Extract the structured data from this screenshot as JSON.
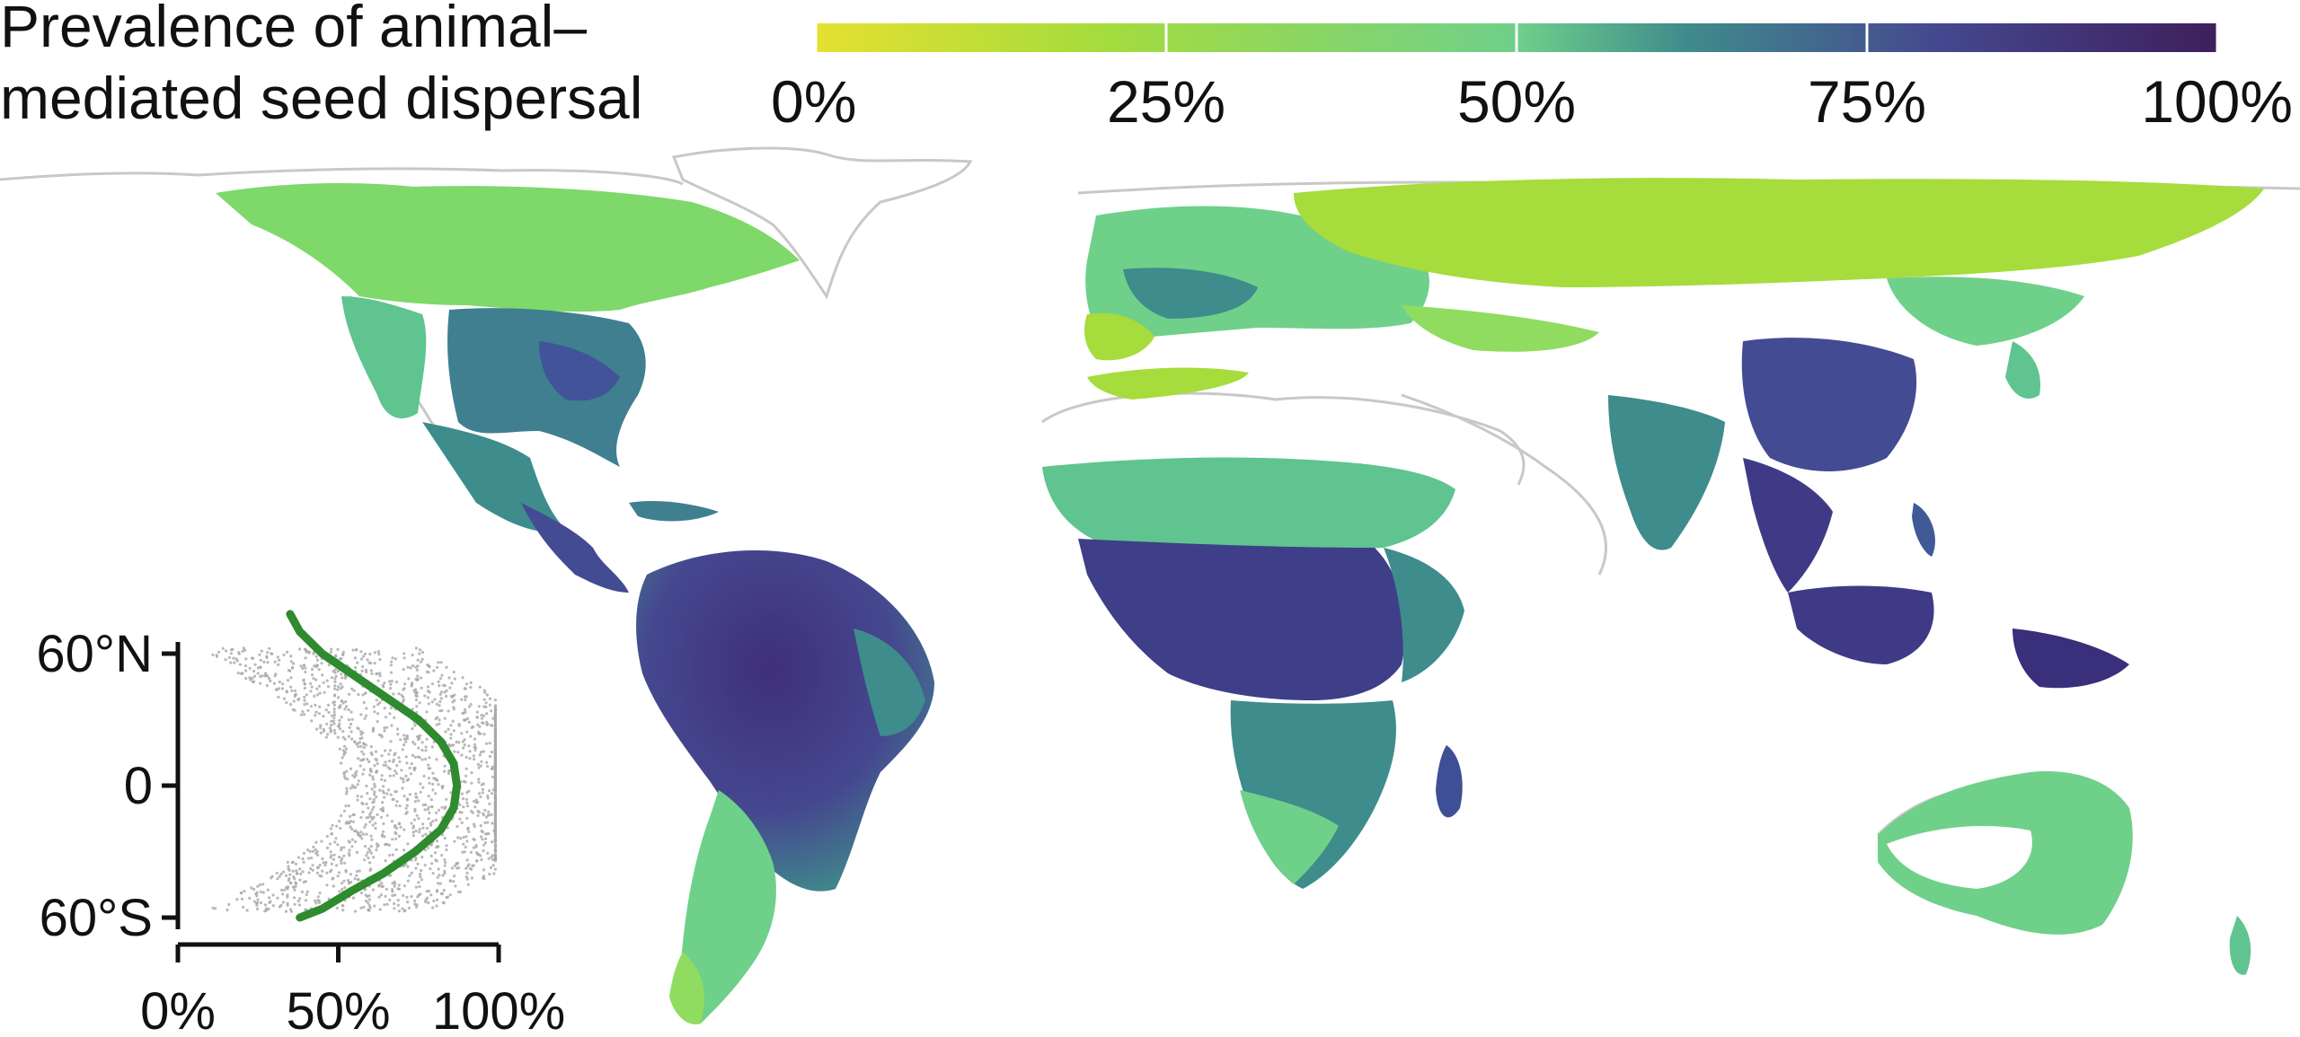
{
  "title": {
    "line1": "Prevalence of animal–",
    "line2": "mediated seed dispersal"
  },
  "colorbar": {
    "ticks": [
      "0%",
      "25%",
      "50%",
      "75%",
      "100%"
    ],
    "tick_values": [
      0,
      25,
      50,
      75,
      100
    ],
    "colors": [
      "#e5e030",
      "#a6dc3c",
      "#6fd08a",
      "#3f8c8c",
      "#45488f",
      "#3e1f5c"
    ]
  },
  "map": {
    "land_outline_color": "#c8c8c8",
    "ocean_color": "#ffffff",
    "regions": [
      {
        "name": "north-america-boreal",
        "prevalence": 40
      },
      {
        "name": "eastern-north-america",
        "prevalence": 70
      },
      {
        "name": "central-america",
        "prevalence": 80
      },
      {
        "name": "amazon",
        "prevalence": 88
      },
      {
        "name": "southern-south-america",
        "prevalence": 45
      },
      {
        "name": "europe",
        "prevalence": 45
      },
      {
        "name": "siberia",
        "prevalence": 30
      },
      {
        "name": "sahel",
        "prevalence": 50
      },
      {
        "name": "central-africa",
        "prevalence": 85
      },
      {
        "name": "southern-africa",
        "prevalence": 60
      },
      {
        "name": "madagascar",
        "prevalence": 85
      },
      {
        "name": "india",
        "prevalence": 70
      },
      {
        "name": "east-asia",
        "prevalence": 80
      },
      {
        "name": "southeast-asia",
        "prevalence": 88
      },
      {
        "name": "new-guinea",
        "prevalence": 90
      },
      {
        "name": "australia",
        "prevalence": 50
      },
      {
        "name": "new-zealand",
        "prevalence": 55
      }
    ]
  },
  "chart_data": {
    "type": "scatter",
    "title": "",
    "xlabel": "",
    "ylabel": "",
    "x_ticks": [
      "0%",
      "50%",
      "100%"
    ],
    "x_tick_values": [
      0,
      50,
      100
    ],
    "y_ticks": [
      "60°N",
      "0",
      "60°S"
    ],
    "y_tick_values": [
      60,
      0,
      -60
    ],
    "xlim": [
      0,
      100
    ],
    "ylim": [
      -60,
      60
    ],
    "point_color": "#a8a8a8",
    "series": [
      {
        "type": "line",
        "color": "#2e8b2e",
        "x": [
          35,
          38,
          45,
          55,
          65,
          75,
          82,
          86,
          87,
          86,
          82,
          74,
          64,
          54,
          45,
          38
        ],
        "y": [
          78,
          70,
          60,
          50,
          40,
          30,
          20,
          10,
          0,
          -10,
          -20,
          -30,
          -40,
          -48,
          -56,
          -60
        ]
      }
    ]
  }
}
